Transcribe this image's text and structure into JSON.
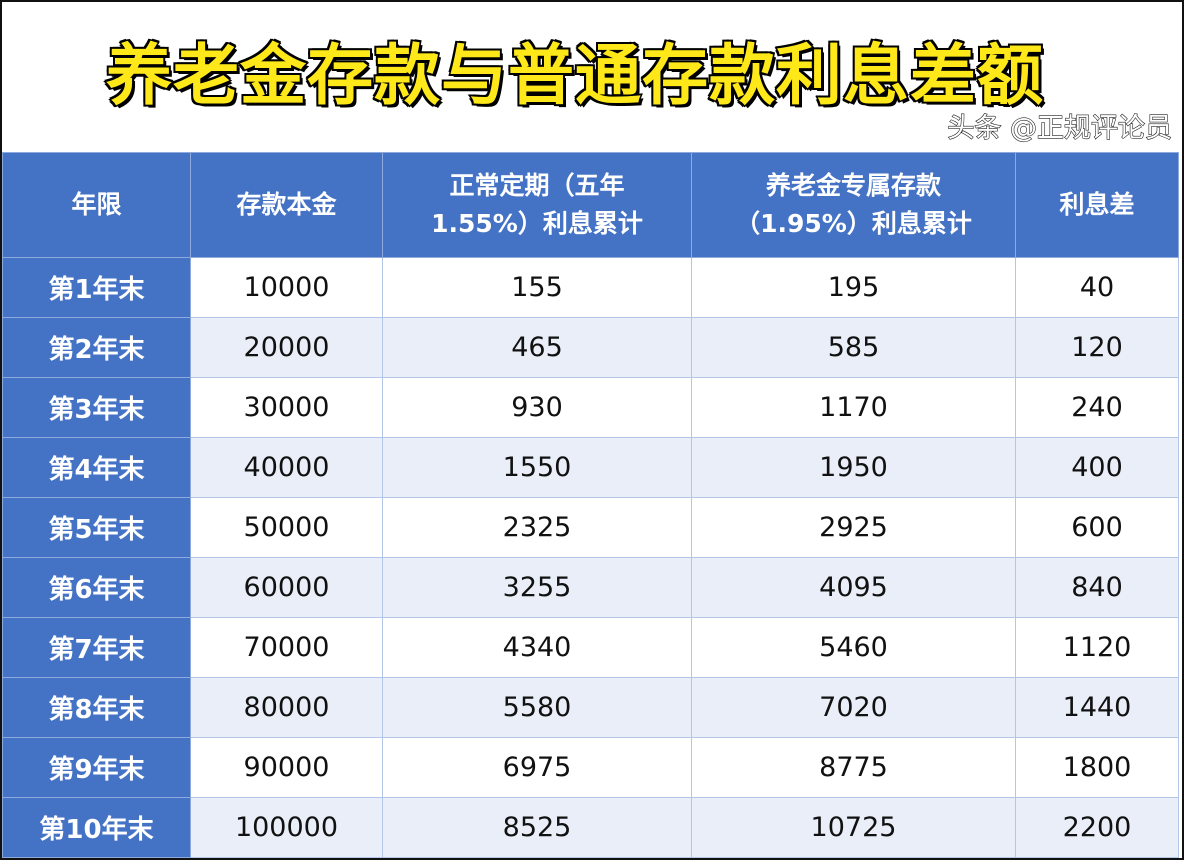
{
  "title": "养老金存款与普通存款利息差额",
  "headers": [
    "年限",
    "存款本金",
    "正常定期（五年1.55%）利息累计",
    "养老金专属存款（1.95%）利息累计",
    "利息差"
  ],
  "rows": [
    [
      "第1年末",
      "10000",
      "155",
      "195",
      "40"
    ],
    [
      "第2年末",
      "20000",
      "465",
      "585",
      "120"
    ],
    [
      "第3年末",
      "30000",
      "930",
      "1170",
      "240"
    ],
    [
      "第4年末",
      "40000",
      "1550",
      "1950",
      "400"
    ],
    [
      "第5年末",
      "50000",
      "2325",
      "2925",
      "600"
    ],
    [
      "第6年末",
      "60000",
      "3255",
      "4095",
      "840"
    ],
    [
      "第7年末",
      "70000",
      "4340",
      "5460",
      "1120"
    ],
    [
      "第8年末",
      "80000",
      "5580",
      "7020",
      "1440"
    ],
    [
      "第9年末",
      "90000",
      "6975",
      "8775",
      "1800"
    ],
    [
      "第10年末",
      "100000",
      "8525",
      "10725",
      "2200"
    ]
  ],
  "watermark": "头条 @正规评论员",
  "colors": {
    "header": "#4472C4",
    "alt_row": "#E9EEF8",
    "title": "#FFE81A"
  }
}
